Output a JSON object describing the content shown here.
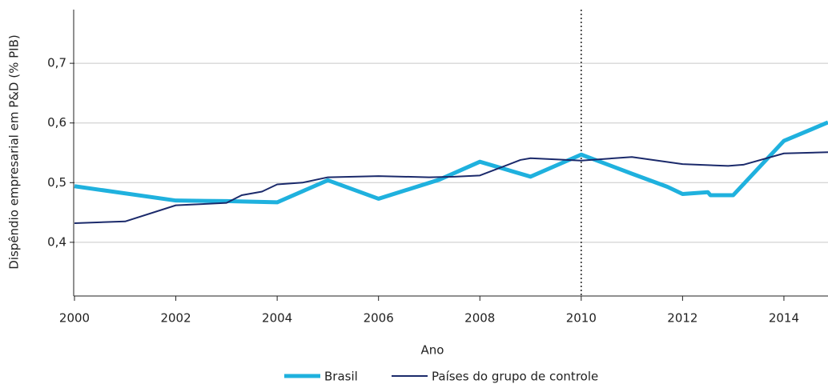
{
  "chart_data": {
    "type": "line",
    "x_label": "Ano",
    "y_label": "Dispêndio empresarial em P&D (% PIB)",
    "xlim": [
      2000,
      2014.87
    ],
    "ylim": [
      0.31,
      0.79
    ],
    "xticks": [
      2000,
      2002,
      2004,
      2006,
      2008,
      2010,
      2012,
      2014
    ],
    "yticks": [
      {
        "value": 0.4,
        "label": "0,4"
      },
      {
        "value": 0.5,
        "label": "0,5"
      },
      {
        "value": 0.6,
        "label": "0,6"
      },
      {
        "value": 0.7,
        "label": "0,7"
      }
    ],
    "grid": true,
    "vline": 2010,
    "legend": "bottom",
    "series": [
      {
        "name": "Brasil",
        "color": "#1fb1de",
        "width": 5,
        "x": [
          2000,
          2002,
          2003,
          2004,
          2005,
          2006,
          2007.2,
          2008,
          2009,
          2010,
          2011,
          2011.7,
          2012,
          2012.5,
          2012.55,
          2013,
          2014,
          2014.87
        ],
        "values": [
          0.494,
          0.47,
          0.469,
          0.467,
          0.504,
          0.473,
          0.505,
          0.535,
          0.51,
          0.547,
          0.515,
          0.493,
          0.481,
          0.484,
          0.479,
          0.479,
          0.57,
          0.601
        ]
      },
      {
        "name": "Países do grupo de controle",
        "color": "#1b2a6b",
        "width": 2,
        "x": [
          2000,
          2001,
          2002,
          2003,
          2003.3,
          2003.7,
          2004,
          2004.5,
          2005,
          2006,
          2007,
          2007.5,
          2008,
          2008.8,
          2009,
          2010,
          2011,
          2012,
          2012.9,
          2013.2,
          2014,
          2014.87
        ],
        "values": [
          0.432,
          0.435,
          0.462,
          0.466,
          0.479,
          0.485,
          0.497,
          0.5,
          0.509,
          0.511,
          0.509,
          0.51,
          0.512,
          0.538,
          0.541,
          0.537,
          0.543,
          0.531,
          0.528,
          0.53,
          0.549,
          0.551
        ]
      }
    ]
  }
}
